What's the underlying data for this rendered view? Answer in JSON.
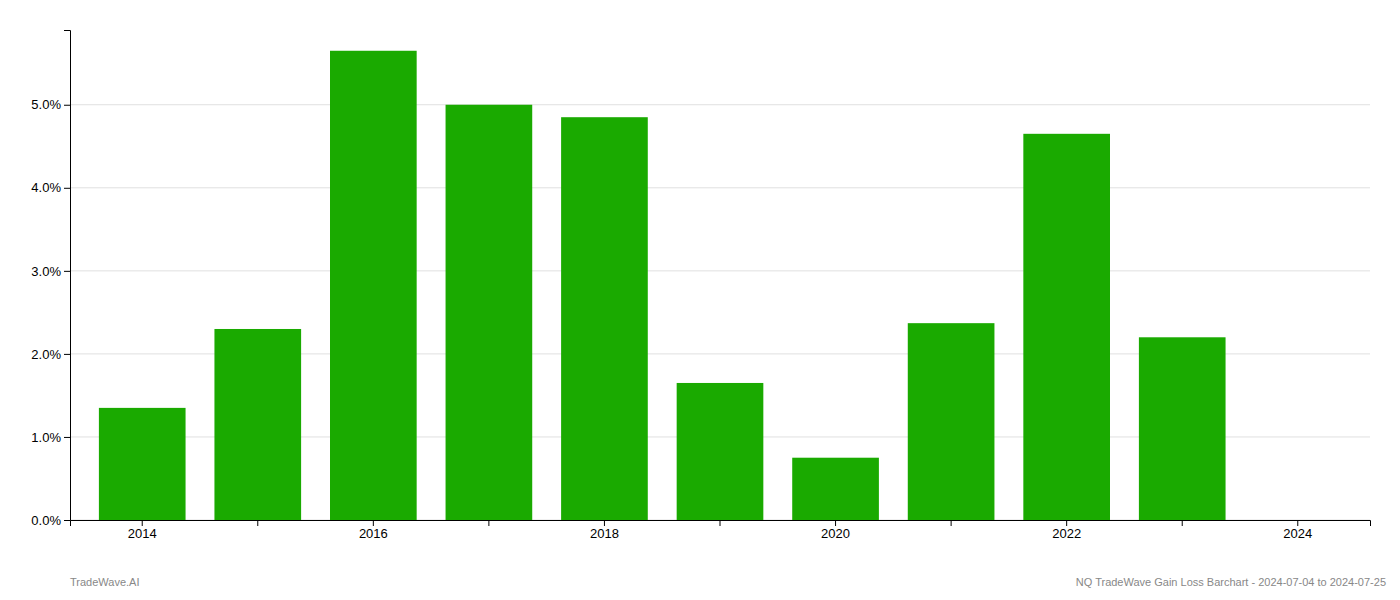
{
  "chart_data": {
    "type": "bar",
    "categories": [
      "2014",
      null,
      "2016",
      null,
      "2018",
      null,
      "2020",
      null,
      "2022",
      null,
      "2024"
    ],
    "values": [
      1.35,
      2.3,
      5.65,
      5.0,
      4.85,
      1.65,
      0.75,
      2.37,
      4.65,
      2.2,
      0.0
    ],
    "color": "#1aaa00",
    "ylim": [
      0,
      5.9
    ],
    "yticks": [
      {
        "value": 0.0,
        "label": "0.0%"
      },
      {
        "value": 1.0,
        "label": "1.0%"
      },
      {
        "value": 2.0,
        "label": "2.0%"
      },
      {
        "value": 3.0,
        "label": "3.0%"
      },
      {
        "value": 4.0,
        "label": "4.0%"
      },
      {
        "value": 5.0,
        "label": "5.0%"
      }
    ],
    "grid": true,
    "annotations": [
      "TradeWave.AI",
      "NQ TradeWave Gain Loss Barchart - 2024-07-04 to 2024-07-25"
    ]
  }
}
